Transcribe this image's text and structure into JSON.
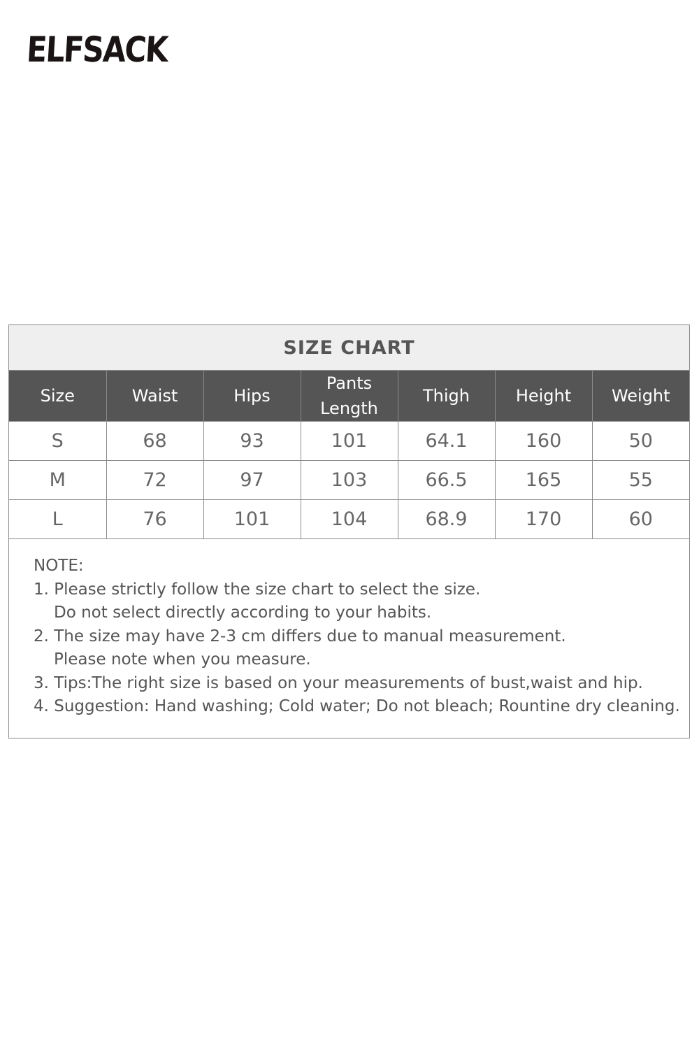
{
  "brand": {
    "logo_text": "ELFSACK"
  },
  "size_chart": {
    "title": "SIZE CHART",
    "headers": [
      "Size",
      "Waist",
      "Hips",
      "Pants\nLength",
      "Thigh",
      "Height",
      "Weight"
    ],
    "rows": [
      [
        "S",
        "68",
        "93",
        "101",
        "64.1",
        "160",
        "50"
      ],
      [
        "M",
        "72",
        "97",
        "103",
        "66.5",
        "165",
        "55"
      ],
      [
        "L",
        "76",
        "101",
        "104",
        "68.9",
        "170",
        "60"
      ]
    ]
  },
  "notes": {
    "heading": "NOTE:",
    "lines": [
      "1. Please strictly follow the size chart to select the size.",
      "Do not select directly according to your habits.",
      "2. The size may have 2-3 cm differs due to manual measurement.",
      "Please note when you measure.",
      "3. Tips:The right size is based on your measurements of bust,waist and hip.",
      "4. Suggestion: Hand washing; Cold water; Do not bleach; Rountine dry cleaning."
    ]
  }
}
